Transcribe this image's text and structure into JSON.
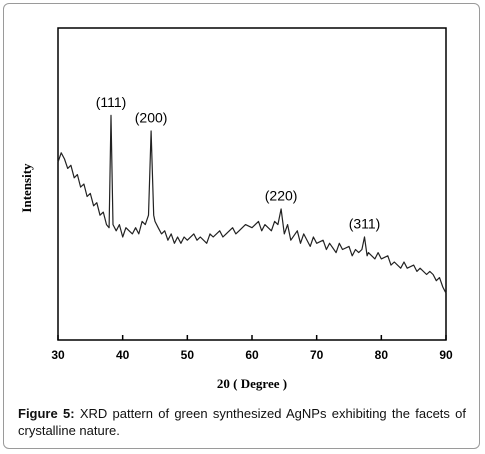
{
  "chart_data": {
    "type": "line",
    "xlabel": "20 ( Degree )",
    "ylabel": "Intensity",
    "caption_label": "Figure 5:",
    "caption": "XRD pattern of green synthesized AgNPs exhibiting the facets of crystalline nature.",
    "x": [
      30,
      30.5,
      31,
      31.5,
      32,
      32.5,
      33,
      33.5,
      34,
      34.5,
      35,
      35.5,
      36,
      36.5,
      37,
      37.5,
      37.9,
      38.2,
      38.5,
      39,
      39.5,
      40,
      40.5,
      41,
      41.5,
      42,
      42.5,
      43,
      43.5,
      44,
      44.4,
      44.8,
      45,
      45.5,
      46,
      46.5,
      47,
      47.5,
      48,
      48.5,
      49,
      49.5,
      50,
      51,
      51.5,
      52,
      53,
      53.5,
      54,
      55,
      55.5,
      56,
      57,
      57.5,
      58,
      59,
      60,
      61,
      61.5,
      62,
      63,
      63.5,
      64,
      64.5,
      65,
      65.5,
      66,
      67,
      67.5,
      68,
      69,
      69.5,
      70,
      71,
      71.5,
      72,
      73,
      73.5,
      74,
      75,
      75.5,
      76,
      76.5,
      77,
      77.4,
      77.8,
      78,
      79,
      79.5,
      80,
      81,
      81.5,
      82,
      83,
      83.5,
      84,
      85,
      85.5,
      86,
      87,
      87.5,
      88,
      88.5,
      89,
      89.5,
      90
    ],
    "series": [
      {
        "color": "#222222",
        "values": [
          57,
          60,
          58,
          55,
          56,
          52,
          53,
          49,
          50,
          46,
          47,
          43,
          44,
          40,
          41,
          37,
          36,
          72,
          37,
          35,
          37,
          33,
          36,
          35,
          34,
          36,
          34,
          38,
          37,
          40,
          67,
          40,
          38,
          36,
          34,
          35,
          32,
          34,
          31,
          33,
          31,
          33,
          32,
          34,
          32,
          33,
          31,
          34,
          33,
          35,
          33,
          34,
          36,
          34,
          35,
          37,
          36,
          38,
          35,
          37,
          35,
          38,
          37,
          42,
          34,
          37,
          32,
          35,
          31,
          34,
          30,
          33,
          31,
          32,
          29,
          31,
          28,
          31,
          29,
          30,
          27,
          29,
          28,
          29,
          33,
          27,
          28,
          26,
          28,
          26,
          27,
          24,
          25,
          23,
          25,
          23,
          24,
          22,
          23,
          21,
          22,
          21,
          19,
          20,
          17,
          15
        ]
      }
    ],
    "annotations": [
      {
        "text": "(111)",
        "x": 38.2
      },
      {
        "text": "(200)",
        "x": 44.4
      },
      {
        "text": "(220)",
        "x": 64.5
      },
      {
        "text": "(311)",
        "x": 77.4
      }
    ],
    "xlim": [
      30,
      90
    ],
    "xticks": [
      30,
      40,
      50,
      60,
      70,
      80,
      90
    ],
    "ylim": [
      0,
      100
    ]
  }
}
